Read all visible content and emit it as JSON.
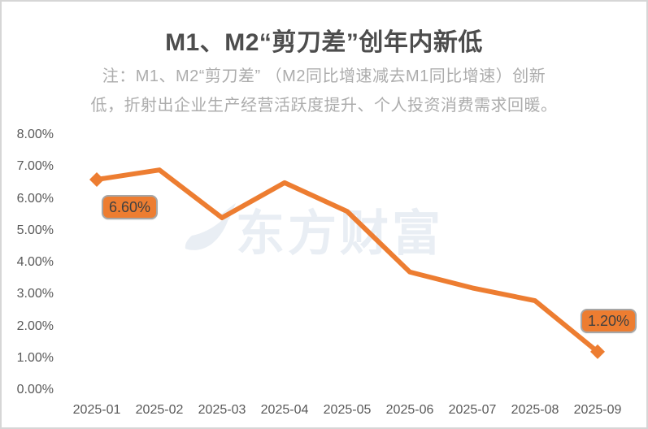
{
  "title": "M1、M2“剪刀差”创年内新低",
  "note": {
    "line1": "注：M1、M2“剪刀差” （M2同比增速减去M1同比增速）创新",
    "line2": "低，折射出企业生产经营活跃度提升、个人投资消费需求回暖。"
  },
  "watermark": {
    "text": "东方财富",
    "color": "#e9eef4"
  },
  "colors": {
    "line": "#ED7D31",
    "marker": "#ED7D31",
    "label_fill": "#ED7D31",
    "label_border": "#A6A6A6",
    "label_text": "#404040",
    "axis_text": "#595959",
    "title_text": "#4D4D4D",
    "note_text": "#ACACAC",
    "frame_border": "#D6D6D6"
  },
  "chart_data": {
    "type": "line",
    "title": "M1、M2“剪刀差”创年内新低",
    "categories": [
      "2025-01",
      "2025-02",
      "2025-03",
      "2025-04",
      "2025-05",
      "2025-06",
      "2025-07",
      "2025-08",
      "2025-09"
    ],
    "values": [
      6.6,
      6.9,
      5.4,
      6.5,
      5.6,
      3.7,
      3.2,
      2.8,
      1.2
    ],
    "unit": "%",
    "xlabel": "",
    "ylabel": "",
    "ylim": [
      0,
      8
    ],
    "y_tick_values": [
      8,
      7,
      6,
      5,
      4,
      3,
      2,
      1,
      0
    ],
    "y_tick_labels": [
      "8.00%",
      "7.00%",
      "6.00%",
      "5.00%",
      "4.00%",
      "3.00%",
      "2.00%",
      "1.00%",
      "0.00%"
    ],
    "grid": false,
    "legend": "none",
    "line_color": "#ED7D31",
    "marker": "diamond",
    "marker_on": [
      "first",
      "last"
    ],
    "data_labels": [
      {
        "category": "2025-01",
        "text": "6.60%"
      },
      {
        "category": "2025-09",
        "text": "1.20%"
      }
    ]
  }
}
